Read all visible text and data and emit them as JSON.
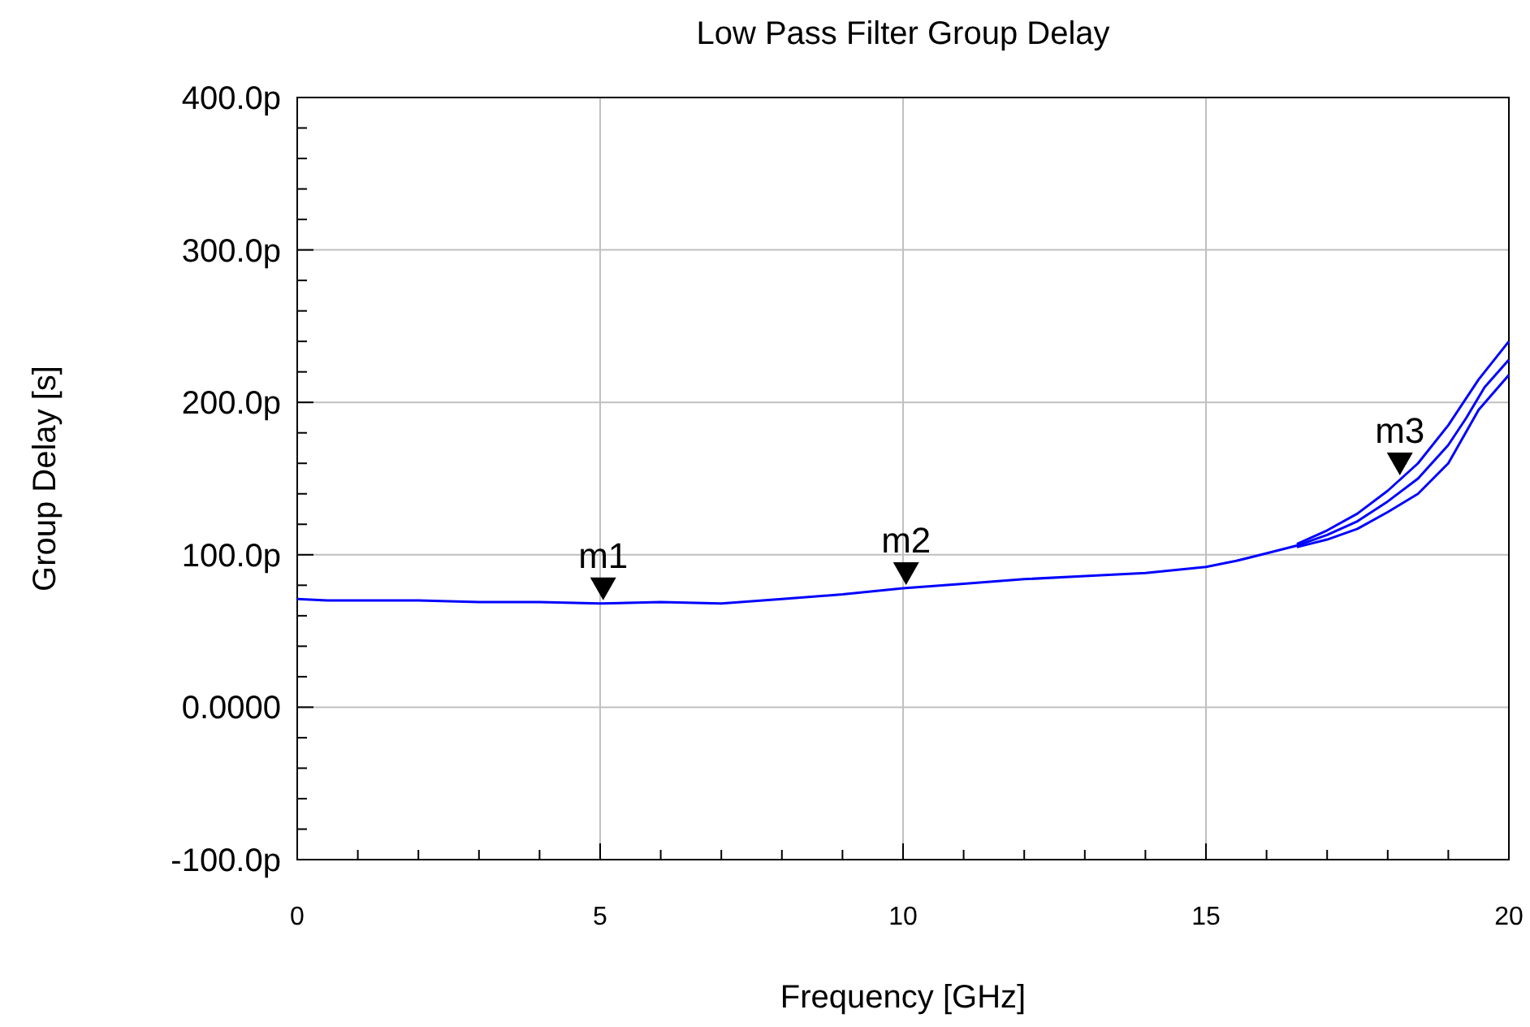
{
  "chart_data": {
    "type": "line",
    "title": "Low Pass Filter Group Delay",
    "xlabel": "Frequency [GHz]",
    "ylabel": "Group Delay [s]",
    "xlim": [
      0,
      20
    ],
    "ylim": [
      -100,
      400
    ],
    "xticks": [
      0,
      {
        "value": 1,
        "label": null
      },
      {
        "value": 2,
        "label": null
      },
      {
        "value": 3,
        "label": null
      },
      {
        "value": 4,
        "label": null
      },
      5,
      {
        "value": 6,
        "label": null
      },
      {
        "value": 7,
        "label": null
      },
      {
        "value": 8,
        "label": null
      },
      {
        "value": 9,
        "label": null
      },
      10,
      {
        "value": 11,
        "label": null
      },
      {
        "value": 12,
        "label": null
      },
      {
        "value": 13,
        "label": null
      },
      {
        "value": 14,
        "label": null
      },
      15,
      {
        "value": 16,
        "label": null
      },
      {
        "value": 17,
        "label": null
      },
      {
        "value": 18,
        "label": null
      },
      {
        "value": 19,
        "label": null
      },
      20
    ],
    "yticks": [
      {
        "value": -100,
        "label": "-100.0p"
      },
      {
        "value": -80,
        "label": null
      },
      {
        "value": -60,
        "label": null
      },
      {
        "value": -40,
        "label": null
      },
      {
        "value": -20,
        "label": null
      },
      {
        "value": 0,
        "label": "0.0000"
      },
      {
        "value": 20,
        "label": null
      },
      {
        "value": 40,
        "label": null
      },
      {
        "value": 60,
        "label": null
      },
      {
        "value": 80,
        "label": null
      },
      {
        "value": 100,
        "label": "100.0p"
      },
      {
        "value": 120,
        "label": null
      },
      {
        "value": 140,
        "label": null
      },
      {
        "value": 160,
        "label": null
      },
      {
        "value": 180,
        "label": null
      },
      {
        "value": 200,
        "label": "200.0p"
      },
      {
        "value": 220,
        "label": null
      },
      {
        "value": 240,
        "label": null
      },
      {
        "value": 260,
        "label": null
      },
      {
        "value": 280,
        "label": null
      },
      {
        "value": 300,
        "label": "300.0p"
      },
      {
        "value": 320,
        "label": null
      },
      {
        "value": 340,
        "label": null
      },
      {
        "value": 360,
        "label": null
      },
      {
        "value": 380,
        "label": null
      },
      {
        "value": 400,
        "label": "400.0p"
      }
    ],
    "grid": true,
    "marker": "none",
    "line_style": "solid",
    "series": [
      {
        "color": "#0000ff",
        "x": [
          0,
          0.5,
          1,
          2,
          3,
          4,
          5,
          6,
          7,
          8,
          9,
          10,
          11,
          12,
          13,
          14,
          15,
          15.5,
          16,
          16.5,
          17,
          17.5,
          18,
          18.5,
          19,
          19.3,
          19.6,
          20
        ],
        "values": [
          71,
          70,
          70,
          70,
          69,
          69,
          68,
          69,
          68,
          71,
          74,
          78,
          81,
          84,
          86,
          88,
          92,
          96,
          101,
          106,
          113,
          122,
          135,
          150,
          172,
          190,
          210,
          228
        ]
      },
      {
        "color": "#0000ff",
        "x": [
          16.5,
          17,
          17.5,
          18,
          18.5,
          19,
          19.5,
          20
        ],
        "values": [
          107,
          116,
          127,
          142,
          160,
          185,
          215,
          240
        ]
      },
      {
        "color": "#0000ff",
        "x": [
          16.5,
          17,
          17.5,
          18,
          18.5,
          19,
          19.5,
          20
        ],
        "values": [
          105,
          110,
          117,
          128,
          140,
          160,
          195,
          218
        ]
      }
    ],
    "annotations": [
      {
        "text": "m1",
        "x": 5.05,
        "y": 68
      },
      {
        "text": "m2",
        "x": 10.05,
        "y": 78
      },
      {
        "text": "m3",
        "x": 18.2,
        "y": 150
      }
    ]
  }
}
